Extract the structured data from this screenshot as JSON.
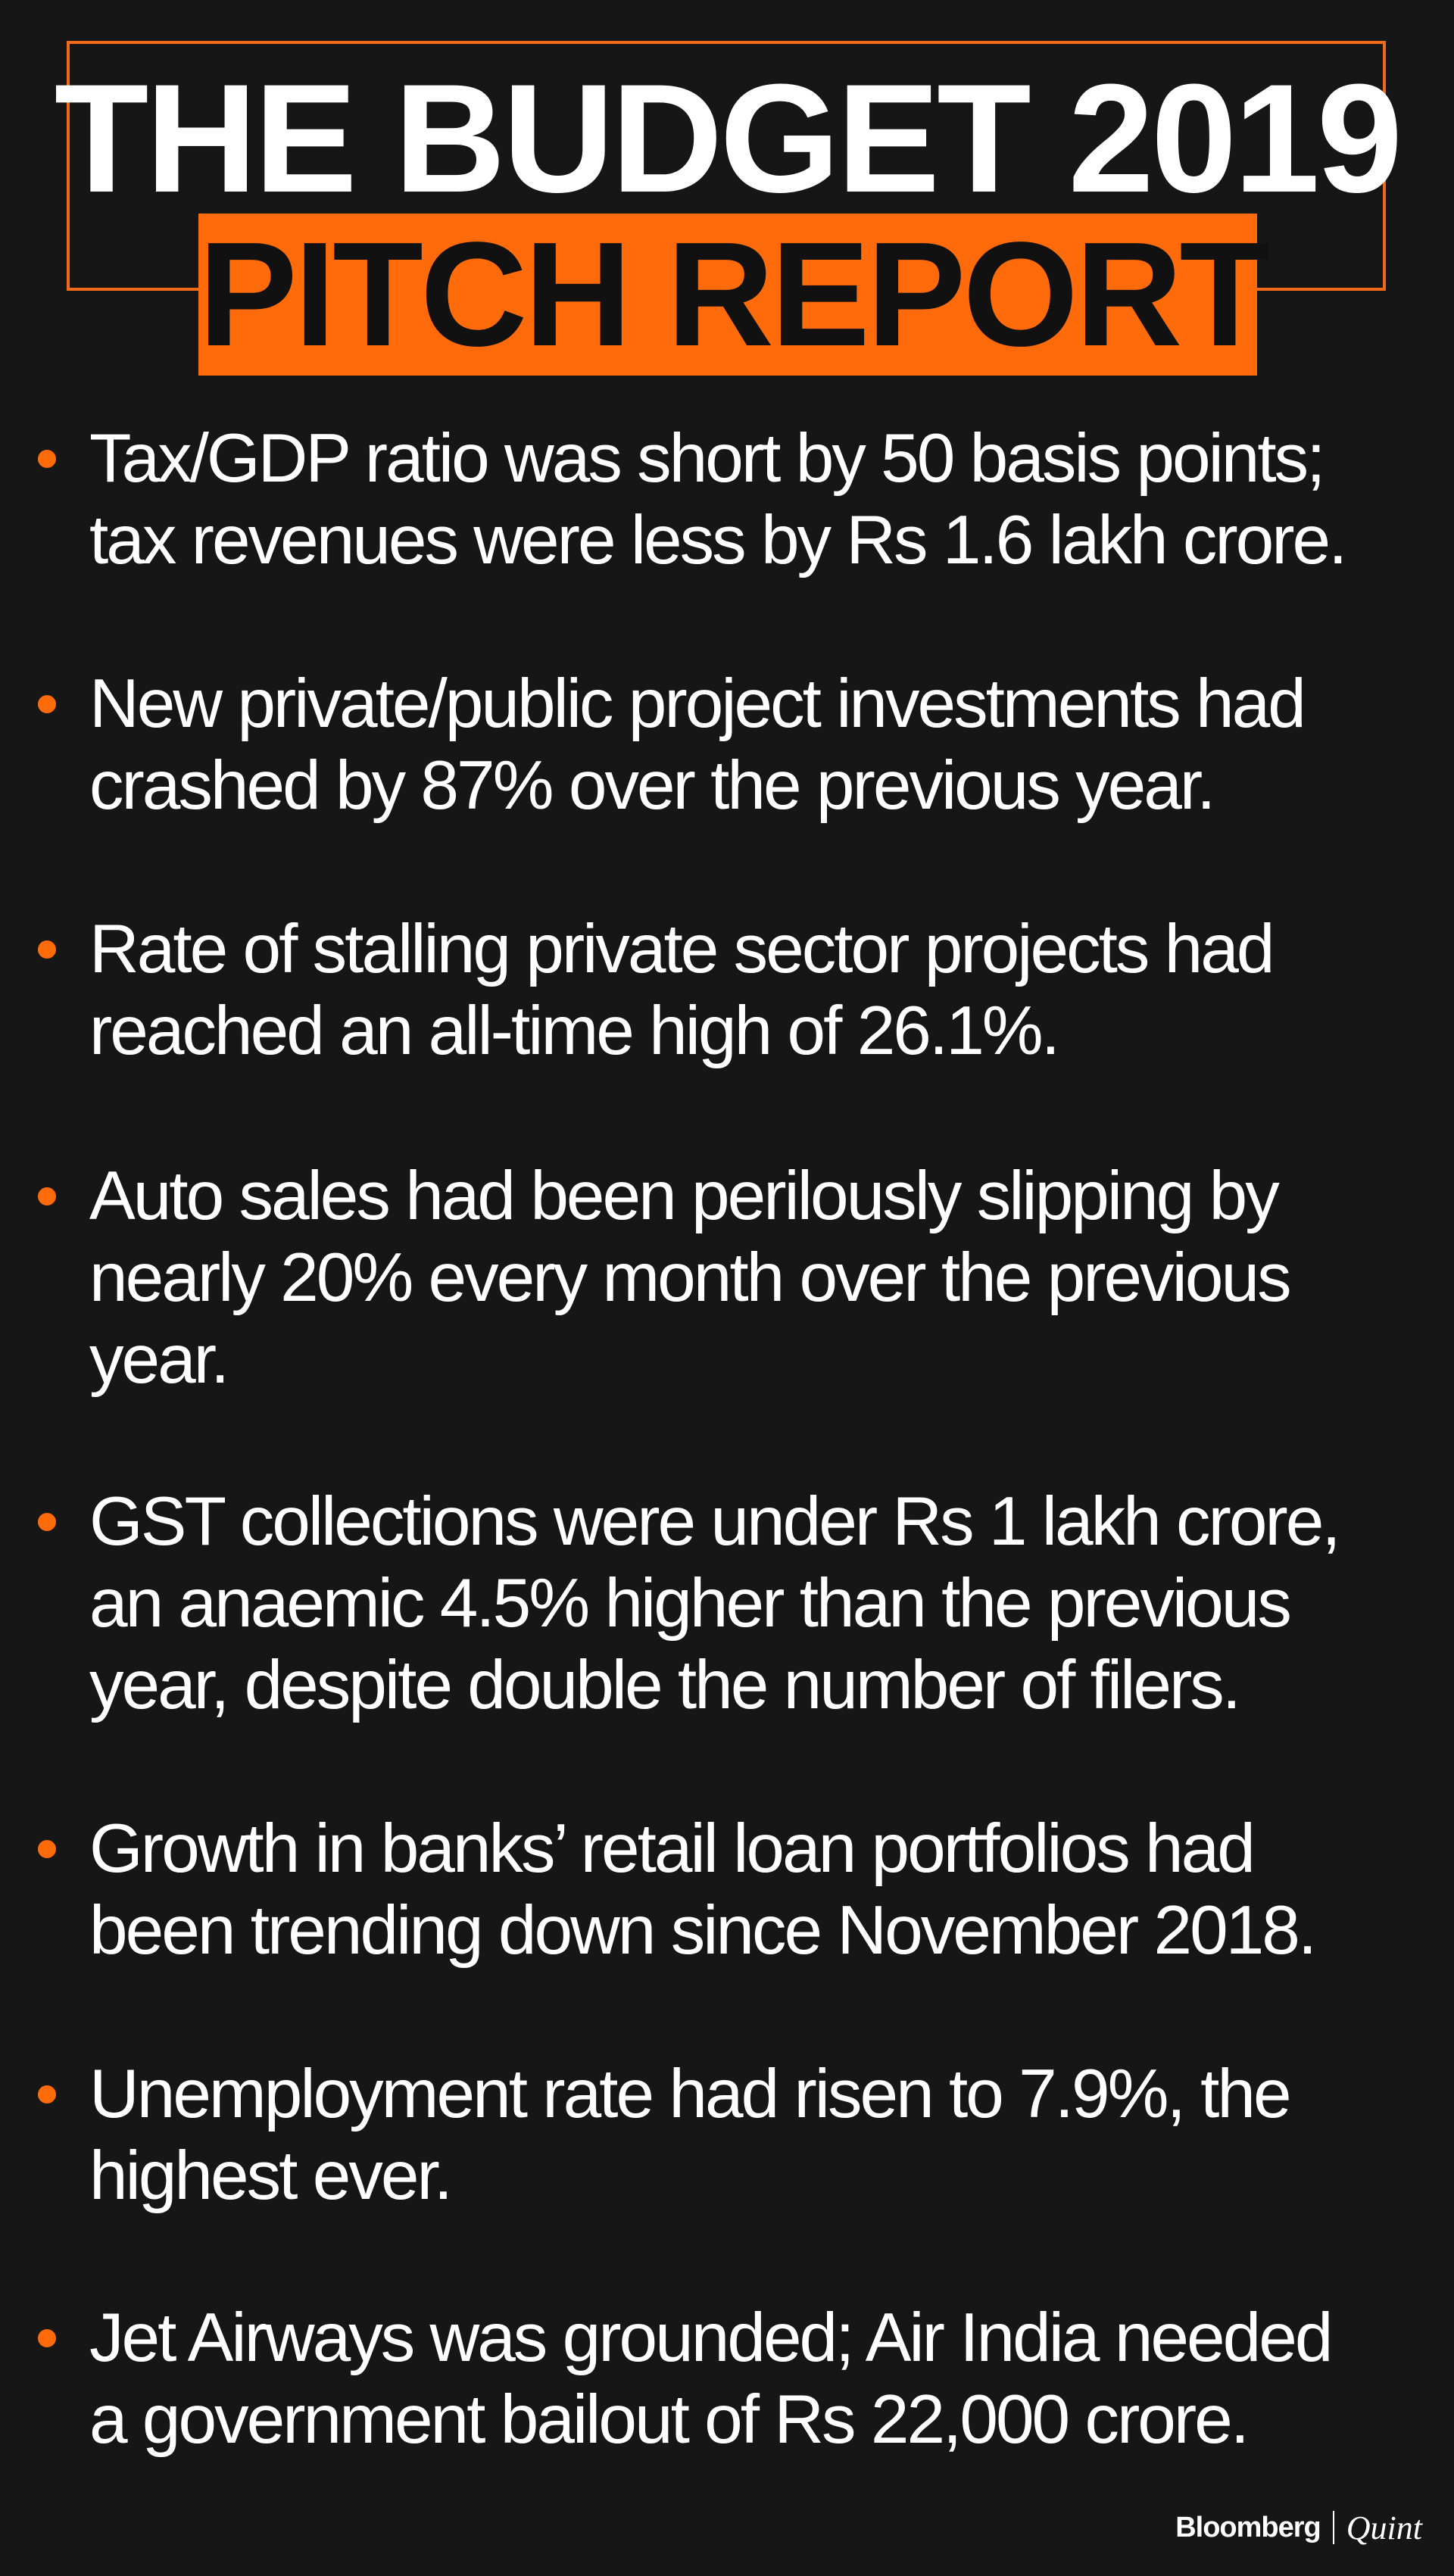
{
  "header": {
    "title_line1": "THE BUDGET 2019",
    "title_line2": "PITCH REPORT"
  },
  "bullets": [
    {
      "line1": "Tax/GDP ratio was short by 50 basis points;",
      "line2": "tax revenues were less by Rs 1.6 lakh crore.",
      "line3": ""
    },
    {
      "line1": "New private/public project investments had",
      "line2": "crashed by 87% over the previous year.",
      "line3": ""
    },
    {
      "line1": "Rate of stalling private sector projects had",
      "line2": "reached an all-time high of 26.1%.",
      "line3": ""
    },
    {
      "line1": "Auto sales had been perilously slipping by",
      "line2": "nearly 20% every month over the previous",
      "line3": "year."
    },
    {
      "line1": "GST collections were under Rs 1 lakh crore,",
      "line2": "an anaemic 4.5% higher than the previous",
      "line3": "year, despite double the number of filers."
    },
    {
      "line1": "Growth in banks’ retail loan portfolios had",
      "line2": "been trending down since November 2018.",
      "line3": ""
    },
    {
      "line1": "Unemployment rate had risen to 7.9%, the",
      "line2": "highest ever.",
      "line3": ""
    },
    {
      "line1": "Jet Airways was grounded; Air India needed",
      "line2": "a government bailout of Rs 22,000 crore.",
      "line3": ""
    }
  ],
  "footer": {
    "brand_part1": "Bloomberg",
    "brand_part2": "Quint"
  },
  "colors": {
    "background": "#161616",
    "accent": "#ff6a0a",
    "text": "#ffffff"
  }
}
